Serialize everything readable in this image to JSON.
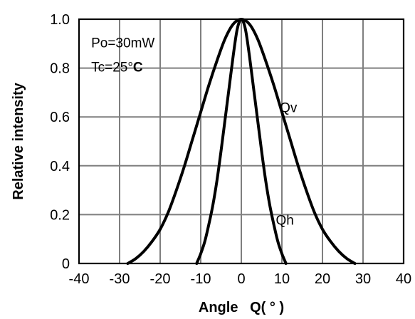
{
  "chart_data": {
    "type": "line",
    "xlabel": "Angle   Q( ° )",
    "ylabel": "Relative intensity",
    "xlim": [
      -40,
      40
    ],
    "ylim": [
      0,
      1.0
    ],
    "x_ticks": [
      "-40",
      "-30",
      "-20",
      "-10",
      "0",
      "10",
      "20",
      "30",
      "40"
    ],
    "y_ticks": [
      "0",
      "0.2",
      "0.4",
      "0.6",
      "0.8",
      "1.0"
    ],
    "grid": true,
    "annotations": {
      "po": "Po=30mW",
      "tc_prefix": "Tc=25°",
      "tc_unit": "C"
    },
    "series": [
      {
        "name": "Qv",
        "color": "#000000",
        "x": [
          -28,
          -26,
          -24,
          -22,
          -20,
          -18,
          -16,
          -14,
          -12,
          -10,
          -8,
          -6,
          -4,
          -2,
          0,
          2,
          4,
          6,
          8,
          10,
          12,
          14,
          16,
          18,
          20,
          22,
          24,
          26,
          28
        ],
        "y": [
          0.0,
          0.02,
          0.05,
          0.09,
          0.14,
          0.21,
          0.3,
          0.4,
          0.51,
          0.62,
          0.73,
          0.83,
          0.92,
          0.98,
          1.0,
          0.98,
          0.92,
          0.83,
          0.73,
          0.62,
          0.51,
          0.4,
          0.3,
          0.21,
          0.14,
          0.09,
          0.05,
          0.02,
          0.0
        ]
      },
      {
        "name": "Qh",
        "color": "#000000",
        "x": [
          -11,
          -10,
          -9,
          -8,
          -7,
          -6,
          -5,
          -4,
          -3,
          -2,
          -1,
          0,
          1,
          2,
          3,
          4,
          5,
          6,
          7,
          8,
          9,
          10,
          11
        ],
        "y": [
          0.0,
          0.04,
          0.09,
          0.16,
          0.24,
          0.34,
          0.46,
          0.59,
          0.72,
          0.85,
          0.96,
          1.0,
          0.96,
          0.85,
          0.72,
          0.59,
          0.46,
          0.34,
          0.24,
          0.16,
          0.09,
          0.04,
          0.0
        ]
      }
    ],
    "series_labels": [
      {
        "text": "Qv",
        "x": 9.5,
        "y": 0.64
      },
      {
        "text": "Qh",
        "x": 8.5,
        "y": 0.18
      }
    ]
  }
}
